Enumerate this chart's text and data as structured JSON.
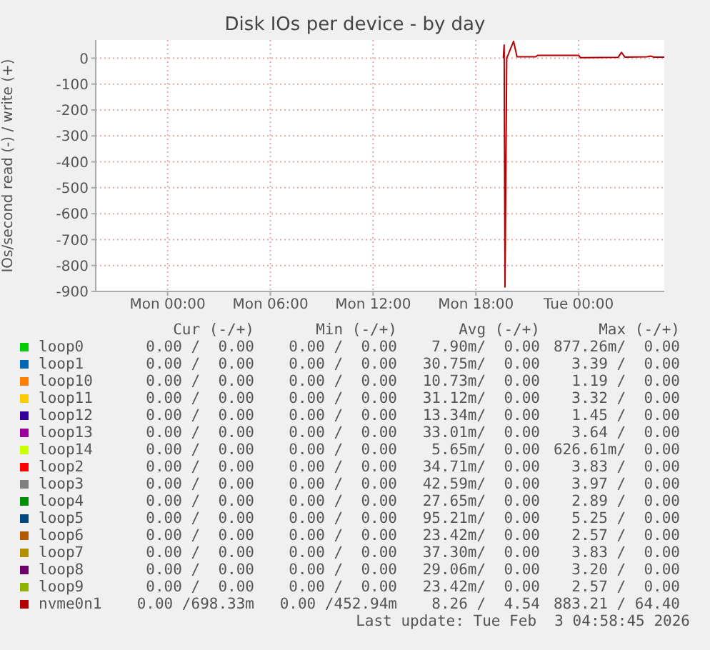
{
  "chart_data": {
    "type": "line",
    "title": "Disk IOs per device - by day",
    "ylabel": "IOs/second read (-) / write (+)",
    "xlim": [
      "2026-02-01T19:48",
      "2026-02-03T05:00"
    ],
    "xticks": [
      {
        "value": "2026-02-02T00:00",
        "label": "Mon 00:00"
      },
      {
        "value": "2026-02-02T06:00",
        "label": "Mon 06:00"
      },
      {
        "value": "2026-02-02T12:00",
        "label": "Mon 12:00"
      },
      {
        "value": "2026-02-02T18:00",
        "label": "Mon 18:00"
      },
      {
        "value": "2026-02-03T00:00",
        "label": "Tue 00:00"
      }
    ],
    "ylim": [
      -900,
      70
    ],
    "yticks": [
      -900,
      -800,
      -700,
      -600,
      -500,
      -400,
      -300,
      -200,
      -100,
      0
    ],
    "grid": true,
    "legend": "bottom",
    "series": [
      {
        "name": "loop0",
        "color": "#00cc00"
      },
      {
        "name": "loop1",
        "color": "#0066b3"
      },
      {
        "name": "loop10",
        "color": "#ff8000"
      },
      {
        "name": "loop11",
        "color": "#ffcc00"
      },
      {
        "name": "loop12",
        "color": "#330099"
      },
      {
        "name": "loop13",
        "color": "#990099"
      },
      {
        "name": "loop14",
        "color": "#ccff00"
      },
      {
        "name": "loop2",
        "color": "#ff0000"
      },
      {
        "name": "loop3",
        "color": "#808080"
      },
      {
        "name": "loop4",
        "color": "#008f00"
      },
      {
        "name": "loop5",
        "color": "#00487d"
      },
      {
        "name": "loop6",
        "color": "#b35a00"
      },
      {
        "name": "loop7",
        "color": "#b38f00"
      },
      {
        "name": "loop8",
        "color": "#6b006b"
      },
      {
        "name": "loop9",
        "color": "#8fb300"
      },
      {
        "name": "nvme0n1",
        "color": "#b30000",
        "x": [
          "2026-02-02T19:36",
          "2026-02-02T19:39",
          "2026-02-02T19:42",
          "2026-02-02T19:48",
          "2026-02-02T20:12",
          "2026-02-02T20:24",
          "2026-02-02T21:30",
          "2026-02-02T21:36",
          "2026-02-03T00:00",
          "2026-02-03T00:06",
          "2026-02-03T02:18",
          "2026-02-03T02:30",
          "2026-02-03T02:42",
          "2026-02-03T04:00",
          "2026-02-03T04:12",
          "2026-02-03T04:24",
          "2026-02-03T05:00"
        ],
        "values": [
          0,
          51,
          -883,
          0,
          65,
          5,
          5,
          11,
          11,
          2,
          3,
          22,
          4,
          5,
          8,
          4,
          4
        ]
      }
    ],
    "annotations": [
      "Cur (-/+)",
      "Min (-/+)",
      "Avg (-/+)",
      "Max (-/+)",
      "0.00 /  0.00",
      "0.00 /  0.00",
      "7.90m/  0.00",
      "877.26m/  0.00",
      "0.00 /  0.00",
      "0.00 /  0.00",
      "30.75m/  0.00",
      "3.39 /  0.00",
      "0.00 /  0.00",
      "0.00 /  0.00",
      "10.73m/  0.00",
      "1.19 /  0.00",
      "0.00 /  0.00",
      "0.00 /  0.00",
      "31.12m/  0.00",
      "3.32 /  0.00",
      "0.00 /  0.00",
      "0.00 /  0.00",
      "13.34m/  0.00",
      "1.45 /  0.00",
      "0.00 /  0.00",
      "0.00 /  0.00",
      "33.01m/  0.00",
      "3.64 /  0.00",
      "0.00 /  0.00",
      "0.00 /  0.00",
      "5.65m/  0.00",
      "626.61m/  0.00",
      "0.00 /  0.00",
      "0.00 /  0.00",
      "34.71m/  0.00",
      "3.83 /  0.00",
      "0.00 /  0.00",
      "0.00 /  0.00",
      "42.59m/  0.00",
      "3.97 /  0.00",
      "0.00 /  0.00",
      "0.00 /  0.00",
      "27.65m/  0.00",
      "2.89 /  0.00",
      "0.00 /  0.00",
      "0.00 /  0.00",
      "95.21m/  0.00",
      "5.25 /  0.00",
      "0.00 /  0.00",
      "0.00 /  0.00",
      "23.42m/  0.00",
      "2.57 /  0.00",
      "0.00 /  0.00",
      "0.00 /  0.00",
      "37.30m/  0.00",
      "3.83 /  0.00",
      "0.00 /  0.00",
      "0.00 /  0.00",
      "29.06m/  0.00",
      "3.20 /  0.00",
      "0.00 /  0.00",
      "0.00 /  0.00",
      "23.42m/  0.00",
      "2.57 /  0.00",
      "0.00 /698.33m",
      "0.00 /452.94m",
      "8.26 /  4.54",
      "883.21 / 64.40",
      "Last update: Tue Feb  3 04:58:45 2026"
    ]
  }
}
